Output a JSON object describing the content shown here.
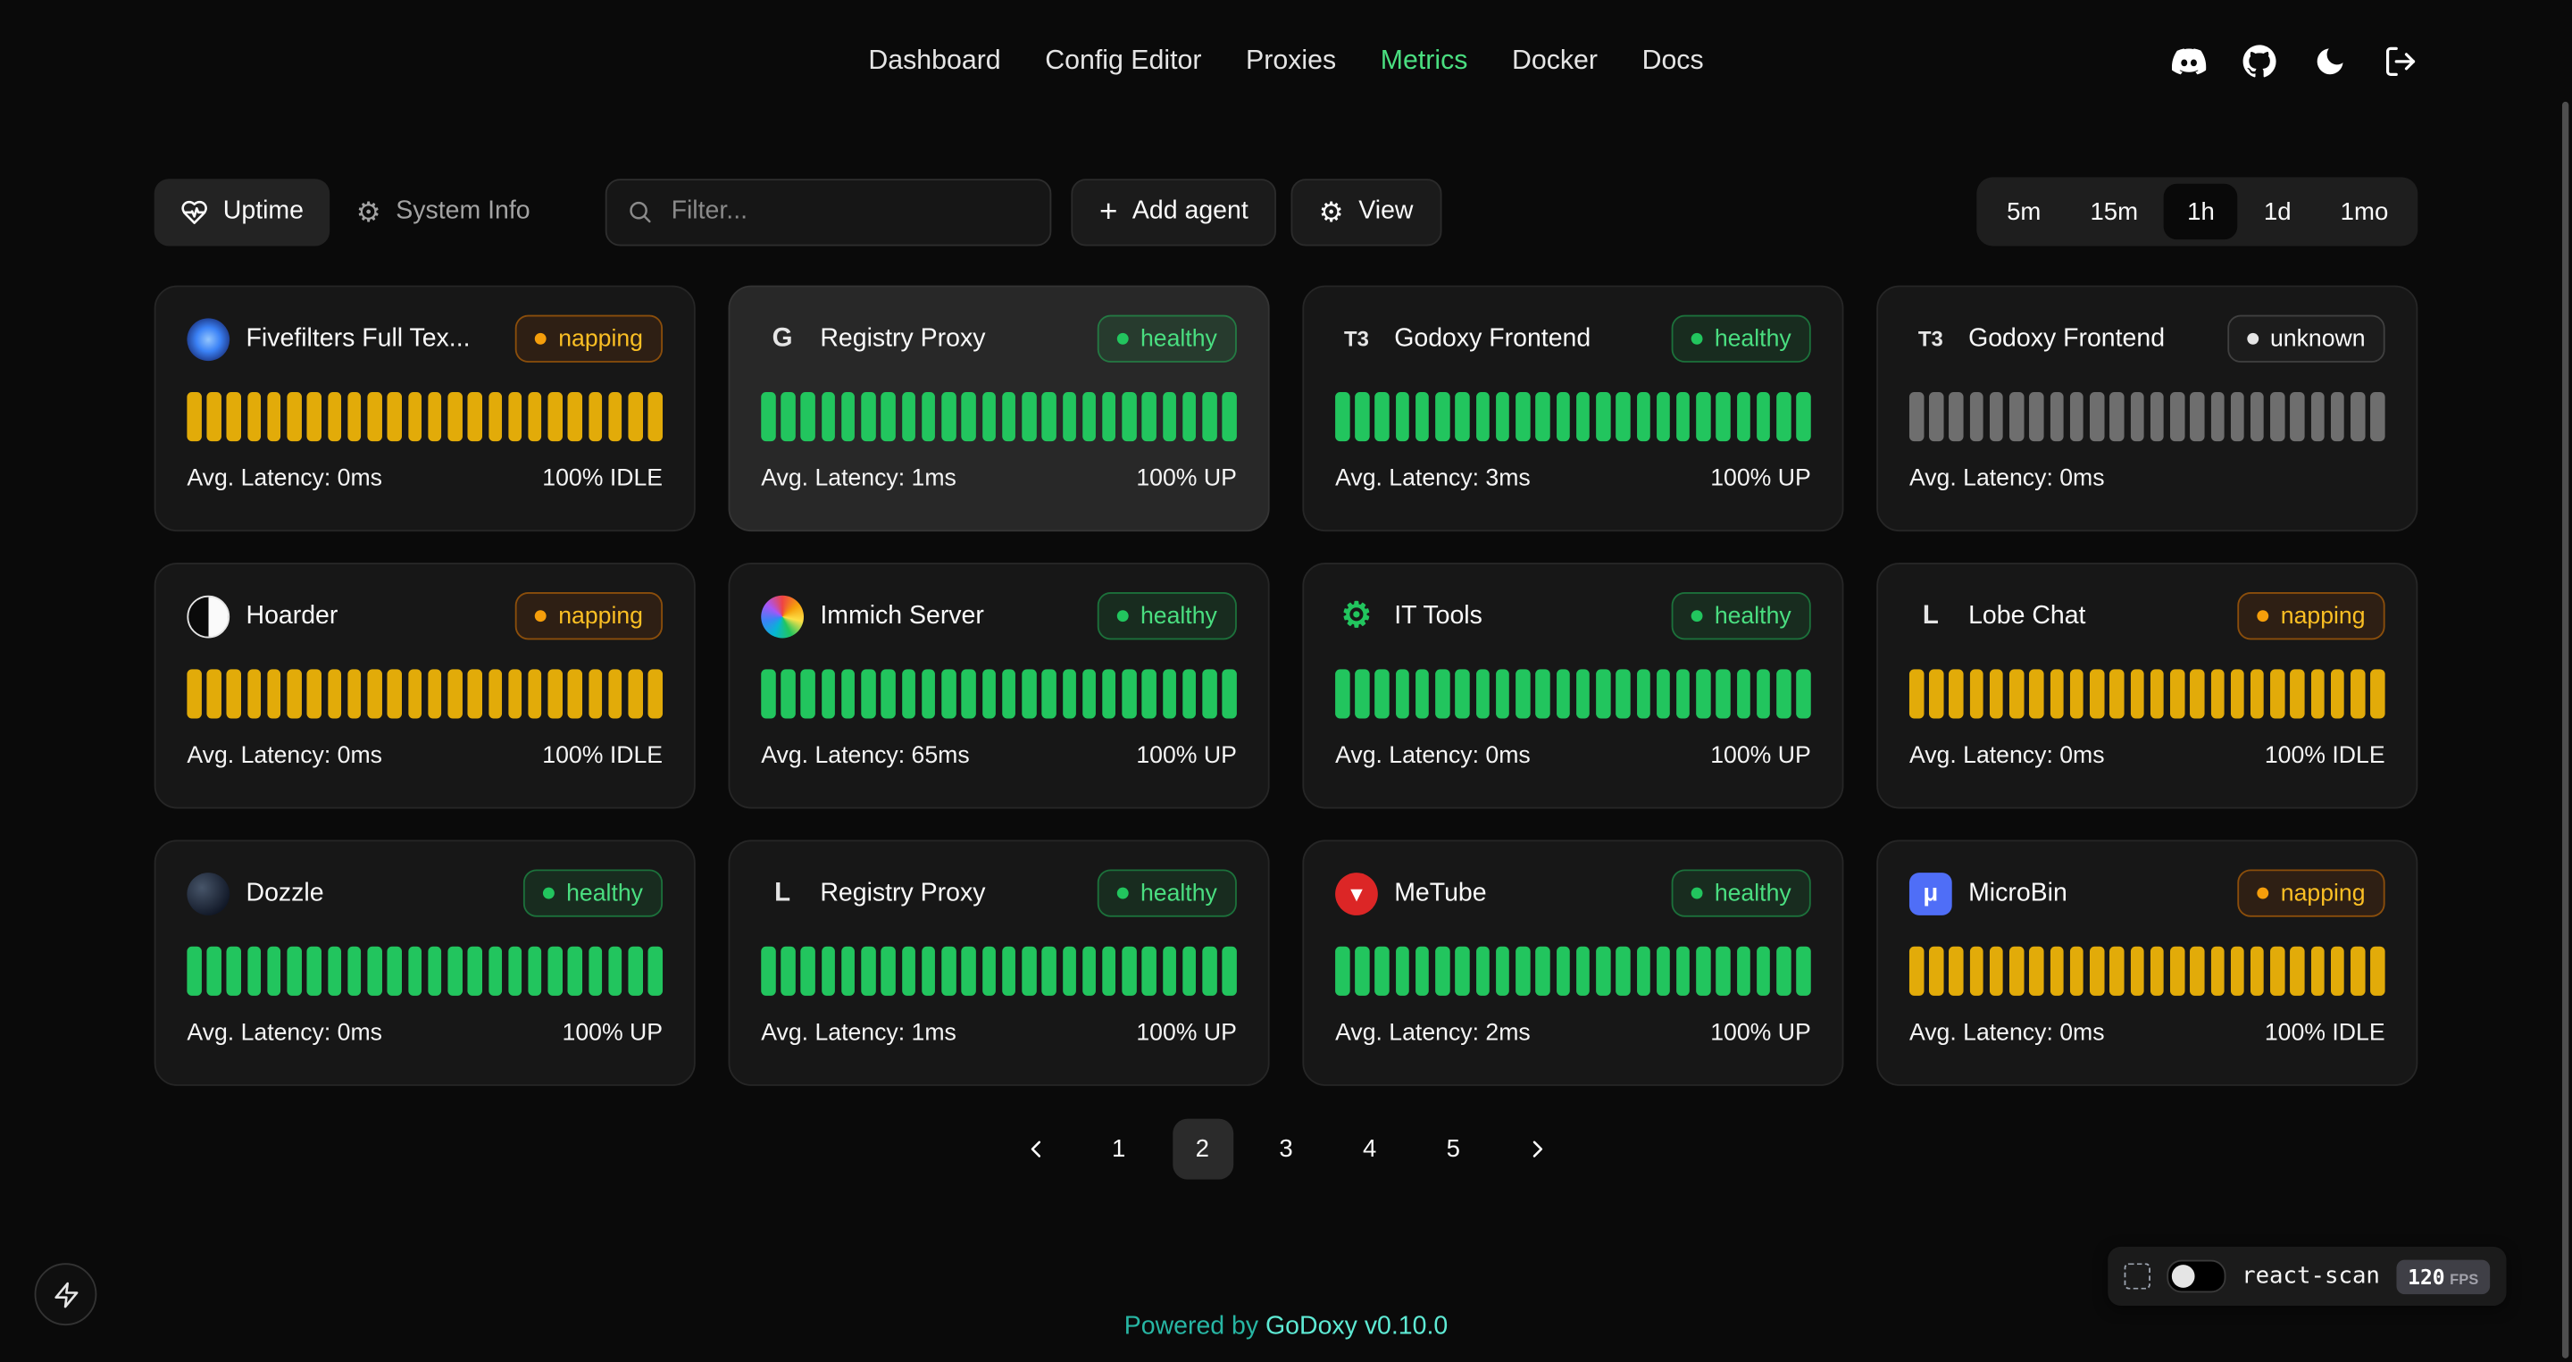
{
  "nav": {
    "items": [
      {
        "label": "Dashboard",
        "active": false
      },
      {
        "label": "Config Editor",
        "active": false
      },
      {
        "label": "Proxies",
        "active": false
      },
      {
        "label": "Metrics",
        "active": true
      },
      {
        "label": "Docker",
        "active": false
      },
      {
        "label": "Docs",
        "active": false
      }
    ]
  },
  "toolbar": {
    "uptime_label": "Uptime",
    "system_info_label": "System Info",
    "filter_placeholder": "Filter...",
    "add_agent_label": "Add agent",
    "view_label": "View",
    "time_ranges": [
      {
        "label": "5m",
        "active": false
      },
      {
        "label": "15m",
        "active": false
      },
      {
        "label": "1h",
        "active": true
      },
      {
        "label": "1d",
        "active": false
      },
      {
        "label": "1mo",
        "active": false
      }
    ]
  },
  "cards": {
    "bar_count": 24,
    "items": [
      {
        "name": "Fivefilters Full Tex...",
        "status": "napping",
        "latency": "Avg. Latency: 0ms",
        "uptime": "100% IDLE",
        "highlight": false,
        "icon": {
          "shape": "circle",
          "bg": "radial-gradient(circle at 50% 50%, #93c5fd 0%, #3b82f6 40%, #1e3a8a 75%)",
          "text": "",
          "color": ""
        }
      },
      {
        "name": "Registry Proxy",
        "status": "healthy",
        "latency": "Avg. Latency: 1ms",
        "uptime": "100% UP",
        "highlight": true,
        "icon": {
          "shape": "none",
          "bg": "",
          "text": "G",
          "color": "#e5e5e5"
        }
      },
      {
        "name": "Godoxy Frontend",
        "status": "healthy",
        "latency": "Avg. Latency: 3ms",
        "uptime": "100% UP",
        "highlight": false,
        "icon": {
          "shape": "none",
          "bg": "",
          "text": "T3",
          "color": "#e5e5e5",
          "font_size": "13px"
        }
      },
      {
        "name": "Godoxy Frontend",
        "status": "unknown",
        "latency": "Avg. Latency: 0ms",
        "uptime": "",
        "highlight": false,
        "icon": {
          "shape": "none",
          "bg": "",
          "text": "T3",
          "color": "#e5e5e5",
          "font_size": "13px"
        }
      },
      {
        "name": "Hoarder",
        "status": "napping",
        "latency": "Avg. Latency: 0ms",
        "uptime": "100% IDLE",
        "highlight": false,
        "icon": {
          "shape": "circle",
          "bg": "linear-gradient(90deg, #0a0a0a 50%, #fafafa 50%)",
          "border": "1.5px solid #e5e5e5",
          "text": "",
          "color": ""
        }
      },
      {
        "name": "Immich Server",
        "status": "healthy",
        "latency": "Avg. Latency: 65ms",
        "uptime": "100% UP",
        "highlight": false,
        "icon": {
          "shape": "circle",
          "bg": "conic-gradient(#ef4444, #f59e0b, #fde047, #22c55e, #06b6d4, #3b82f6, #a855f7, #ef4444)",
          "text": "",
          "color": ""
        }
      },
      {
        "name": "IT Tools",
        "status": "healthy",
        "latency": "Avg. Latency: 0ms",
        "uptime": "100% UP",
        "highlight": false,
        "icon": {
          "shape": "none",
          "bg": "",
          "text": "⚙",
          "color": "#22c55e",
          "font_size": "21px"
        }
      },
      {
        "name": "Lobe Chat",
        "status": "napping",
        "latency": "Avg. Latency: 0ms",
        "uptime": "100% IDLE",
        "highlight": false,
        "icon": {
          "shape": "none",
          "bg": "",
          "text": "L",
          "color": "#e5e5e5"
        }
      },
      {
        "name": "Dozzle",
        "status": "healthy",
        "latency": "Avg. Latency: 0ms",
        "uptime": "100% UP",
        "highlight": false,
        "icon": {
          "shape": "circle",
          "bg": "radial-gradient(circle at 35% 35%, #475569 0%, #111827 75%)",
          "text": "",
          "color": ""
        }
      },
      {
        "name": "Registry Proxy",
        "status": "healthy",
        "latency": "Avg. Latency: 1ms",
        "uptime": "100% UP",
        "highlight": false,
        "icon": {
          "shape": "none",
          "bg": "",
          "text": "L",
          "color": "#e5e5e5"
        }
      },
      {
        "name": "MeTube",
        "status": "healthy",
        "latency": "Avg. Latency: 2ms",
        "uptime": "100% UP",
        "highlight": false,
        "icon": {
          "shape": "circle",
          "bg": "#dc2626",
          "text": "▾",
          "color": "#ffffff",
          "font_size": "13px"
        }
      },
      {
        "name": "MicroBin",
        "status": "napping",
        "latency": "Avg. Latency: 0ms",
        "uptime": "100% IDLE",
        "highlight": false,
        "icon": {
          "shape": "square",
          "bg": "#4f6ef7",
          "text": "μ",
          "color": "#ffffff",
          "font_size": "15px"
        }
      }
    ]
  },
  "pagination": {
    "pages": [
      {
        "label": "1",
        "active": false
      },
      {
        "label": "2",
        "active": true
      },
      {
        "label": "3",
        "active": false
      },
      {
        "label": "4",
        "active": false
      },
      {
        "label": "5",
        "active": false
      }
    ]
  },
  "react_scan": {
    "label": "react-scan",
    "fps": "120",
    "fps_unit": "FPS"
  },
  "footer": {
    "powered_by": "Powered by",
    "brand": "GoDoxy",
    "version": "v0.10.0"
  },
  "theme": {
    "green": "#22c55e",
    "yellow": "#e2ab09",
    "gray": "#6e6e6e",
    "accent": "#4ade80",
    "teal": "#2dd4bf"
  }
}
